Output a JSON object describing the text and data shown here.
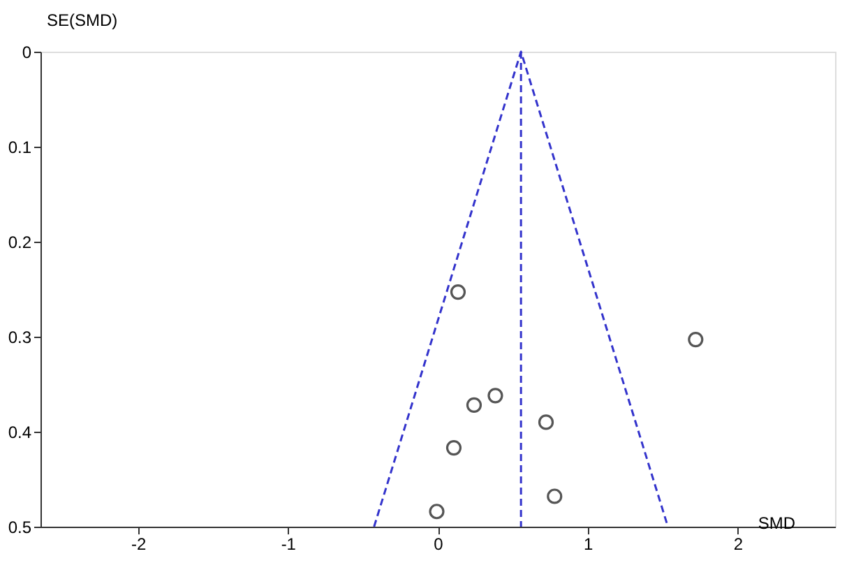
{
  "chart_data": {
    "type": "scatter",
    "xlabel": "SMD",
    "ylabel": "SE(SMD)",
    "xlim": [
      -2.65,
      2.65
    ],
    "xticks": [
      -2,
      -1,
      0,
      1,
      2
    ],
    "ylim": [
      0.5,
      0
    ],
    "yticks": [
      0,
      0.1,
      0.2,
      0.3,
      0.4,
      0.5
    ],
    "grid": false,
    "marker": "circle",
    "series": [
      {
        "color": "#555555",
        "x": [
          0.135,
          1.72,
          0.384,
          0.242,
          0.722,
          0.107,
          0.779,
          -0.007
        ],
        "values": [
          0.253,
          0.303,
          0.362,
          0.372,
          0.39,
          0.417,
          0.468,
          0.484
        ]
      },
      {
        "type": "line",
        "color": "#3333cc",
        "line_style": "dashed",
        "marker": "none",
        "x": [
          -0.425,
          0.555,
          1.535
        ],
        "values": [
          0.5,
          0,
          0.5
        ]
      }
    ],
    "ref_lines": [
      {
        "axis": "x",
        "value": 0.555,
        "color": "#3333cc",
        "line_style": "dashed"
      }
    ]
  }
}
